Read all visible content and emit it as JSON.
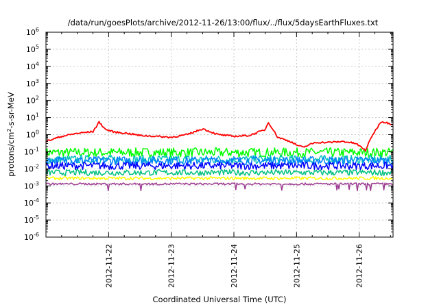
{
  "chart_data": {
    "type": "line",
    "title": "/data/run/goesPlots/archive/2012-11-26/13:00/flux/../flux/5daysEarthFluxes.txt",
    "xlabel": "Coordinated Universal Time (UTC)",
    "ylabel": "protons/cm²-s-sr-MeV",
    "ylabel_parts": {
      "base": "protons/cm",
      "sup": "2",
      "rest": "-s-sr-MeV"
    },
    "y_scale": "log",
    "ylim": [
      1e-06,
      1000000.0
    ],
    "y_ticks": [
      {
        "base": "10",
        "exp": "6"
      },
      {
        "base": "10",
        "exp": "5"
      },
      {
        "base": "10",
        "exp": "4"
      },
      {
        "base": "10",
        "exp": "3"
      },
      {
        "base": "10",
        "exp": "2"
      },
      {
        "base": "10",
        "exp": "1"
      },
      {
        "base": "10",
        "exp": "0"
      },
      {
        "base": "10",
        "exp": "-1"
      },
      {
        "base": "10",
        "exp": "-2"
      },
      {
        "base": "10",
        "exp": "-3"
      },
      {
        "base": "10",
        "exp": "-4"
      },
      {
        "base": "10",
        "exp": "-5"
      },
      {
        "base": "10",
        "exp": "-6"
      }
    ],
    "x_ticks": [
      "2012-11-22",
      "2012-11-23",
      "2012-11-24",
      "2012-11-25",
      "2012-11-26"
    ],
    "x_tick_dates": [
      22,
      23,
      24,
      25,
      26
    ],
    "x_range_days": [
      21.0,
      26.54
    ],
    "grid": true,
    "legend": "none",
    "series": [
      {
        "color": "#ff0000",
        "x": [
          21.0,
          21.25,
          21.5,
          21.75,
          21.85,
          21.95,
          22.1,
          22.3,
          22.5,
          22.75,
          23.0,
          23.25,
          23.5,
          23.75,
          24.0,
          24.25,
          24.5,
          24.55,
          24.7,
          24.9,
          25.0,
          25.1,
          25.3,
          25.5,
          25.75,
          25.95,
          26.1,
          26.2,
          26.35,
          26.54
        ],
        "y": [
          0.4,
          0.8,
          1.2,
          1.5,
          5.5,
          2.0,
          1.4,
          1.2,
          0.9,
          0.8,
          0.7,
          1.0,
          2.2,
          1.0,
          0.8,
          0.9,
          2.0,
          5.5,
          0.7,
          0.4,
          0.25,
          0.18,
          0.35,
          0.35,
          0.4,
          0.3,
          0.12,
          0.8,
          6.0,
          4.0
        ]
      },
      {
        "color": "#00ff00",
        "x": [
          21.0,
          26.54
        ],
        "y": [
          0.09,
          0.09
        ]
      },
      {
        "color": "#00bfbf",
        "x": [
          21.0,
          26.54
        ],
        "y": [
          0.035,
          0.035
        ]
      },
      {
        "color": "#0080ff",
        "x": [
          21.0,
          26.54
        ],
        "y": [
          0.03,
          0.03
        ]
      },
      {
        "color": "#0000ff",
        "x": [
          21.0,
          26.54
        ],
        "y": [
          0.015,
          0.015
        ]
      },
      {
        "color": "#00c080",
        "x": [
          21.0,
          26.54
        ],
        "y": [
          0.006,
          0.006
        ]
      },
      {
        "color": "#ffff00",
        "x": [
          21.0,
          26.54
        ],
        "y": [
          0.0028,
          0.0028
        ]
      },
      {
        "color": "#9b3a8f",
        "x": [
          21.0,
          26.54
        ],
        "y": [
          0.0013,
          0.0013
        ]
      }
    ]
  }
}
